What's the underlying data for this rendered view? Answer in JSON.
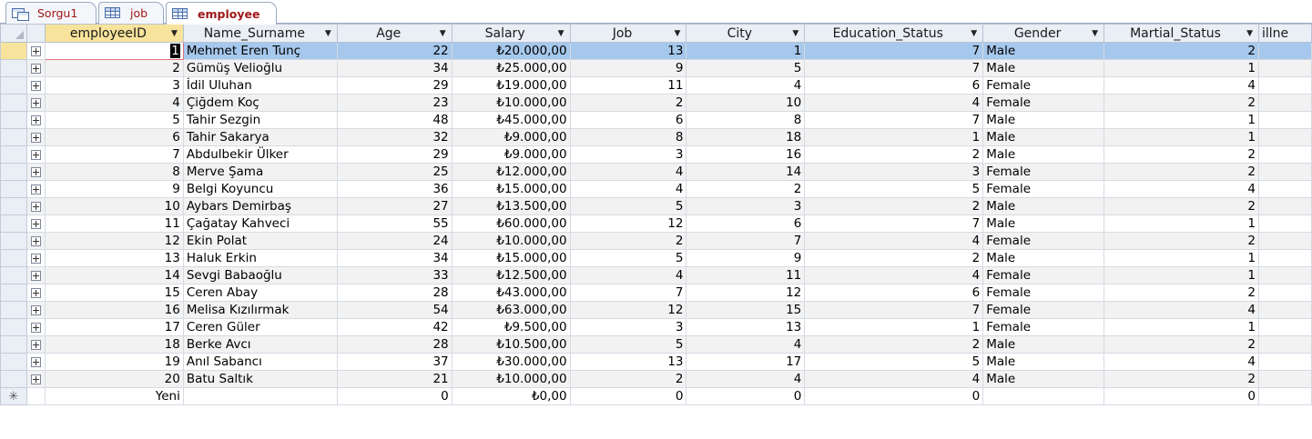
{
  "tabs": [
    {
      "label": "Sorgu1",
      "icon": "query-icon"
    },
    {
      "label": "job",
      "icon": "table-icon"
    },
    {
      "label": "employee",
      "icon": "table-icon",
      "active": true
    }
  ],
  "columns": [
    "employeeID",
    "Name_Surname",
    "Age",
    "Salary",
    "Job",
    "City",
    "Education_Status",
    "Gender",
    "Martial_Status",
    "illne"
  ],
  "rows": [
    {
      "id": "1",
      "name": "Mehmet Eren Tunç",
      "age": "22",
      "salary": "₺20.000,00",
      "job": "13",
      "city": "1",
      "edu": "7",
      "gender": "Male",
      "marital": "2"
    },
    {
      "id": "2",
      "name": "Gümüş Velioğlu",
      "age": "34",
      "salary": "₺25.000,00",
      "job": "9",
      "city": "5",
      "edu": "7",
      "gender": "Male",
      "marital": "1"
    },
    {
      "id": "3",
      "name": "İdil Uluhan",
      "age": "29",
      "salary": "₺19.000,00",
      "job": "11",
      "city": "4",
      "edu": "6",
      "gender": "Female",
      "marital": "4"
    },
    {
      "id": "4",
      "name": "Çiğdem Koç",
      "age": "23",
      "salary": "₺10.000,00",
      "job": "2",
      "city": "10",
      "edu": "4",
      "gender": "Female",
      "marital": "2"
    },
    {
      "id": "5",
      "name": "Tahir Sezgin",
      "age": "48",
      "salary": "₺45.000,00",
      "job": "6",
      "city": "8",
      "edu": "7",
      "gender": "Male",
      "marital": "1"
    },
    {
      "id": "6",
      "name": "Tahir Sakarya",
      "age": "32",
      "salary": "₺9.000,00",
      "job": "8",
      "city": "18",
      "edu": "1",
      "gender": "Male",
      "marital": "1"
    },
    {
      "id": "7",
      "name": "Abdulbekir Ülker",
      "age": "29",
      "salary": "₺9.000,00",
      "job": "3",
      "city": "16",
      "edu": "2",
      "gender": "Male",
      "marital": "2"
    },
    {
      "id": "8",
      "name": "Merve Şama",
      "age": "25",
      "salary": "₺12.000,00",
      "job": "4",
      "city": "14",
      "edu": "3",
      "gender": "Female",
      "marital": "2"
    },
    {
      "id": "9",
      "name": "Belgi Koyuncu",
      "age": "36",
      "salary": "₺15.000,00",
      "job": "4",
      "city": "2",
      "edu": "5",
      "gender": "Female",
      "marital": "4"
    },
    {
      "id": "10",
      "name": "Aybars Demirbaş",
      "age": "27",
      "salary": "₺13.500,00",
      "job": "5",
      "city": "3",
      "edu": "2",
      "gender": "Male",
      "marital": "2"
    },
    {
      "id": "11",
      "name": "Çağatay Kahveci",
      "age": "55",
      "salary": "₺60.000,00",
      "job": "12",
      "city": "6",
      "edu": "7",
      "gender": "Male",
      "marital": "1"
    },
    {
      "id": "12",
      "name": "Ekin Polat",
      "age": "24",
      "salary": "₺10.000,00",
      "job": "2",
      "city": "7",
      "edu": "4",
      "gender": "Female",
      "marital": "2"
    },
    {
      "id": "13",
      "name": "Haluk Erkin",
      "age": "34",
      "salary": "₺15.000,00",
      "job": "5",
      "city": "9",
      "edu": "2",
      "gender": "Male",
      "marital": "1"
    },
    {
      "id": "14",
      "name": "Sevgi Babaoğlu",
      "age": "33",
      "salary": "₺12.500,00",
      "job": "4",
      "city": "11",
      "edu": "4",
      "gender": "Female",
      "marital": "1"
    },
    {
      "id": "15",
      "name": "Ceren Abay",
      "age": "28",
      "salary": "₺43.000,00",
      "job": "7",
      "city": "12",
      "edu": "6",
      "gender": "Female",
      "marital": "2"
    },
    {
      "id": "16",
      "name": "Melisa Kızılırmak",
      "age": "54",
      "salary": "₺63.000,00",
      "job": "12",
      "city": "15",
      "edu": "7",
      "gender": "Female",
      "marital": "4"
    },
    {
      "id": "17",
      "name": "Ceren Güler",
      "age": "42",
      "salary": "₺9.500,00",
      "job": "3",
      "city": "13",
      "edu": "1",
      "gender": "Female",
      "marital": "1"
    },
    {
      "id": "18",
      "name": "Berke Avcı",
      "age": "28",
      "salary": "₺10.500,00",
      "job": "5",
      "city": "4",
      "edu": "2",
      "gender": "Male",
      "marital": "2"
    },
    {
      "id": "19",
      "name": "Anıl Sabancı",
      "age": "37",
      "salary": "₺30.000,00",
      "job": "13",
      "city": "17",
      "edu": "5",
      "gender": "Male",
      "marital": "4"
    },
    {
      "id": "20",
      "name": "Batu Saltık",
      "age": "21",
      "salary": "₺10.000,00",
      "job": "2",
      "city": "4",
      "edu": "4",
      "gender": "Male",
      "marital": "2"
    }
  ],
  "new_row": {
    "marker": "✳",
    "label": "Yeni",
    "age": "0",
    "salary": "₺0,00",
    "job": "0",
    "city": "0",
    "edu": "0",
    "marital": "0"
  },
  "colors": {
    "selected_row": "#a6c8ec",
    "sorted_header": "#f7e39b",
    "tab_text": "#a01818"
  }
}
